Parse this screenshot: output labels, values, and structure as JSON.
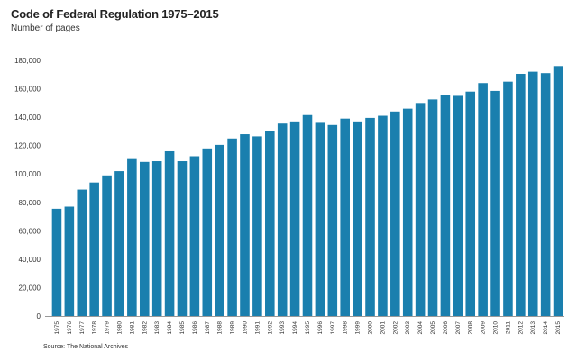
{
  "chart_data": {
    "type": "bar",
    "title": "Code of Federal Regulation 1975–2015",
    "subtitle": "Number of pages",
    "source": "Source: The National Archives",
    "bar_color": "#1a7fae",
    "ylim": [
      0,
      180000
    ],
    "yticks": [
      "0",
      "20,000",
      "40,000",
      "60,000",
      "80,000",
      "100,000",
      "120,000",
      "140,000",
      "160,000",
      "180,000"
    ],
    "categories": [
      "1975",
      "1976",
      "1977",
      "1978",
      "1979",
      "1980",
      "1981",
      "1982",
      "1983",
      "1984",
      "1985",
      "1986",
      "1987",
      "1988",
      "1989",
      "1990",
      "1991",
      "1992",
      "1993",
      "1994",
      "1995",
      "1996",
      "1997",
      "1998",
      "1999",
      "2000",
      "2001",
      "2002",
      "2003",
      "2004",
      "2005",
      "2006",
      "2007",
      "2008",
      "2009",
      "2010",
      "2011",
      "2012",
      "2013",
      "2014",
      "2015"
    ],
    "values": [
      75500,
      77000,
      89000,
      94000,
      99000,
      102000,
      110500,
      108500,
      109000,
      116000,
      109000,
      112500,
      118000,
      120500,
      125000,
      128000,
      126500,
      130500,
      135500,
      137000,
      141500,
      136000,
      134500,
      139000,
      137000,
      139500,
      141000,
      144000,
      146000,
      150000,
      152500,
      155500,
      155000,
      158000,
      164000,
      158500,
      165000,
      170500,
      172000,
      171000,
      176000
    ]
  }
}
